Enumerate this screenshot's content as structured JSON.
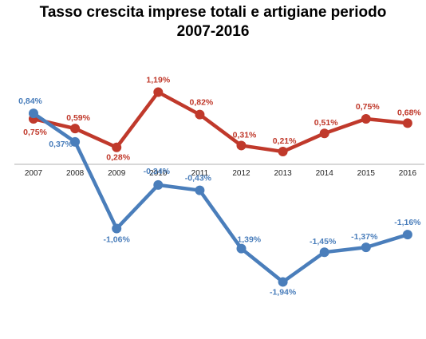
{
  "chart_data": {
    "type": "line",
    "title_line1": "Tasso crescita imprese totali e artigiane periodo",
    "title_line2": "2007-2016",
    "categories": [
      "2007",
      "2008",
      "2009",
      "2010",
      "2011",
      "2012",
      "2013",
      "2014",
      "2015",
      "2016"
    ],
    "series": [
      {
        "color": "#c0392b",
        "values": [
          0.75,
          0.59,
          0.28,
          1.19,
          0.82,
          0.31,
          0.21,
          0.51,
          0.75,
          0.68
        ],
        "labels": [
          "0,75%",
          "0,59%",
          "0,28%",
          "1,19%",
          "0,82%",
          "0,31%",
          "0,21%",
          "0,51%",
          "0,75%",
          "0,68%"
        ]
      },
      {
        "color": "#4a7ebb",
        "values": [
          0.84,
          0.37,
          -1.06,
          -0.34,
          -0.43,
          -1.39,
          -1.94,
          -1.45,
          -1.37,
          -1.16
        ],
        "labels": [
          "0,84%",
          "0,37%",
          "-1,06%",
          "-0,34%",
          "-0,43%",
          "-1,39%",
          "-1,94%",
          "-1,45%",
          "-1,37%",
          "-1,16%"
        ]
      }
    ],
    "ylim": [
      -2.1,
      1.4
    ],
    "grid": false,
    "legend": "none"
  }
}
